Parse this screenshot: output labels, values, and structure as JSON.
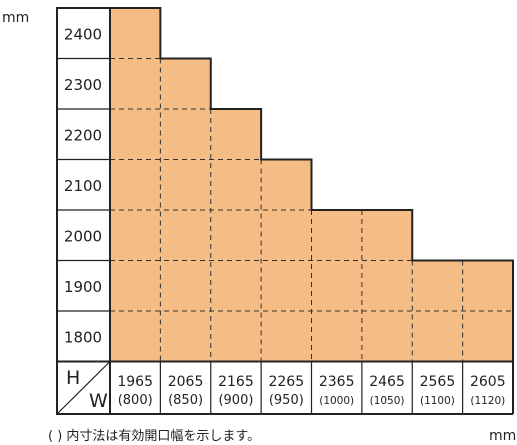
{
  "chart_data": {
    "type": "table",
    "unit_top_left": "mm",
    "unit_bottom_right": "mm",
    "corner_h": "H",
    "corner_w": "W",
    "note": "(  ) 内寸法は有効開口幅を示します。",
    "heights": [
      "2400",
      "2300",
      "2200",
      "2100",
      "2000",
      "1900",
      "1800"
    ],
    "widths": [
      "1965",
      "2065",
      "2165",
      "2265",
      "2365",
      "2465",
      "2565",
      "2605"
    ],
    "opening_widths": [
      "(800)",
      "(850)",
      "(900)",
      "(950)",
      "(1000)",
      "(1050)",
      "(1100)",
      "(1120)"
    ],
    "max_height_per_width": [
      2400,
      2300,
      2200,
      2100,
      2000,
      2000,
      1900,
      1900
    ],
    "colors": {
      "available": "#f5bd85",
      "grid": "#333333",
      "border": "#222222"
    }
  }
}
